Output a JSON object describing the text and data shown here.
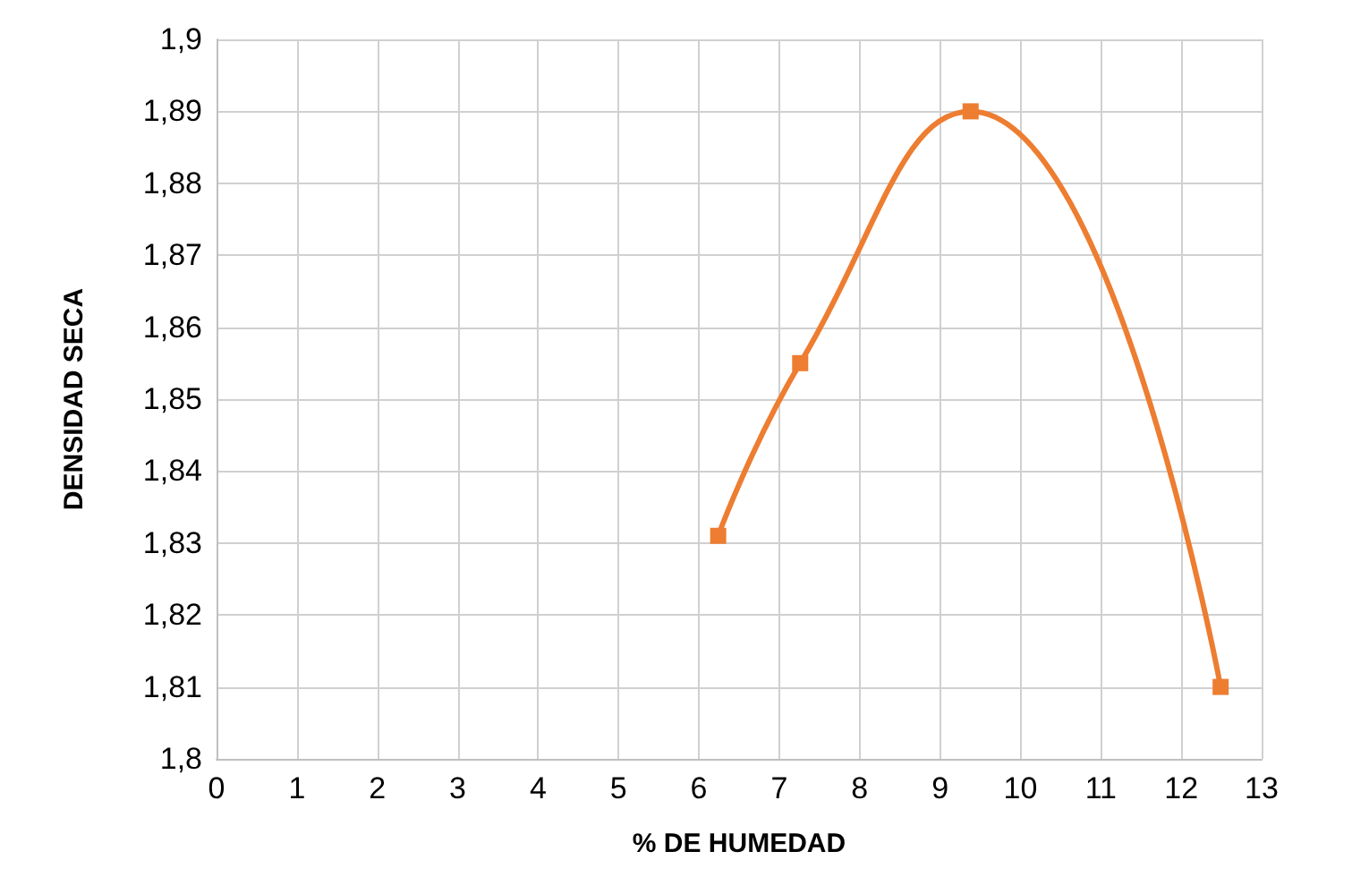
{
  "chart_data": {
    "type": "line",
    "xlabel": "% DE HUMEDAD",
    "ylabel": "DENSIDAD SECA",
    "series": [
      {
        "x": [
          6.24,
          7.26,
          9.38,
          12.49
        ],
        "values": [
          1.831,
          1.855,
          1.89,
          1.81
        ],
        "color": "#ed7d31"
      }
    ],
    "xlim": [
      0,
      13
    ],
    "xticks": [
      0,
      1,
      2,
      3,
      4,
      5,
      6,
      7,
      8,
      9,
      10,
      11,
      12,
      13
    ],
    "ylim": [
      1.8,
      1.9
    ],
    "yticks": [
      {
        "value": 1.8,
        "label": "1,8"
      },
      {
        "value": 1.81,
        "label": "1,81"
      },
      {
        "value": 1.82,
        "label": "1,82"
      },
      {
        "value": 1.83,
        "label": "1,83"
      },
      {
        "value": 1.84,
        "label": "1,84"
      },
      {
        "value": 1.85,
        "label": "1,85"
      },
      {
        "value": 1.86,
        "label": "1,86"
      },
      {
        "value": 1.87,
        "label": "1,87"
      },
      {
        "value": 1.88,
        "label": "1,88"
      },
      {
        "value": 1.89,
        "label": "1,89"
      },
      {
        "value": 1.9,
        "label": "1,9"
      }
    ],
    "grid": true,
    "marker": "square",
    "line_style": "solid"
  }
}
